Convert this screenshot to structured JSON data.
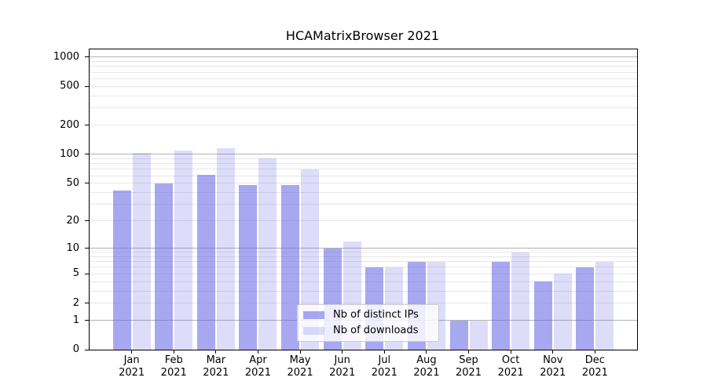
{
  "figure": {
    "background": "#ffffff",
    "frame_color": "#000000",
    "grid_major_color": "#b2b2b2",
    "grid_minor_color": "#e7e7e7"
  },
  "chart_data": {
    "type": "bar",
    "title": "HCAMatrixBrowser 2021",
    "months": [
      "Jan",
      "Feb",
      "Mar",
      "Apr",
      "May",
      "Jun",
      "Jul",
      "Aug",
      "Sep",
      "Oct",
      "Nov",
      "Dec"
    ],
    "year": "2021",
    "categories": [
      "Jan 2021",
      "Feb 2021",
      "Mar 2021",
      "Apr 2021",
      "May 2021",
      "Jun 2021",
      "Jul 2021",
      "Aug 2021",
      "Sep 2021",
      "Oct 2021",
      "Nov 2021",
      "Dec 2021"
    ],
    "series": [
      {
        "name": "Nb of distinct IPs",
        "color": "#6666e6",
        "alpha": 0.57,
        "values": [
          42,
          50,
          61,
          48,
          48,
          10,
          6,
          7,
          1,
          7,
          4,
          6
        ]
      },
      {
        "name": "Nb of downloads",
        "color": "#6666e6",
        "alpha": 0.22,
        "values": [
          104,
          110,
          116,
          90,
          70,
          12,
          6,
          7,
          1,
          9,
          5,
          7
        ]
      }
    ],
    "xlabel": "",
    "ylabel": "",
    "yscale": "symlog",
    "yticks": [
      0,
      1,
      2,
      5,
      10,
      20,
      50,
      100,
      200,
      500,
      1000
    ],
    "yticks_decades": [
      1,
      10,
      100,
      1000
    ],
    "ylim": [
      0,
      1200
    ],
    "grid": true,
    "legend_position": "lower center"
  }
}
